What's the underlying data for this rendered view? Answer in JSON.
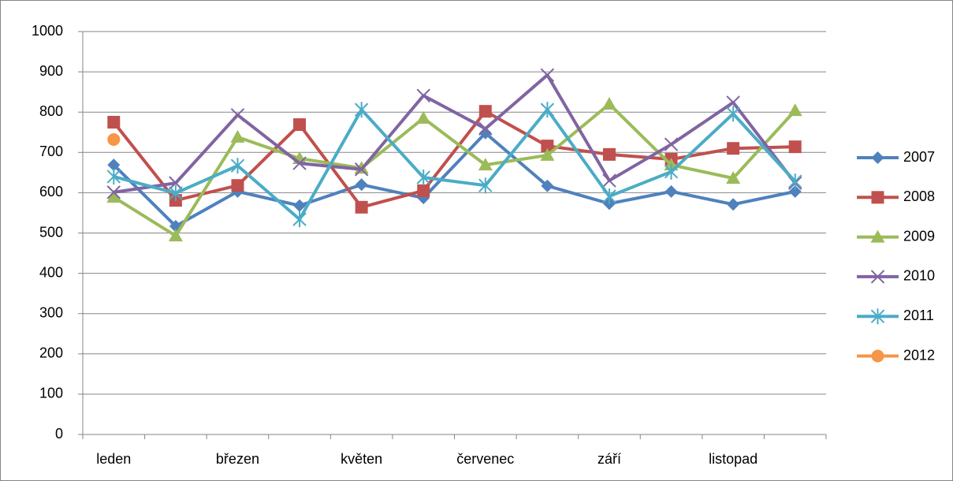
{
  "chart_data": {
    "type": "line",
    "categories": [
      "leden",
      null,
      "březen",
      null,
      "květen",
      null,
      "červenec",
      null,
      "září",
      null,
      "listopad",
      null
    ],
    "series": [
      {
        "name": "2007",
        "color": "#4F81BD",
        "marker": "diamond",
        "values": [
          669,
          517,
          603,
          568,
          620,
          587,
          748,
          617,
          573,
          603,
          571,
          603
        ]
      },
      {
        "name": "2008",
        "color": "#C0504D",
        "marker": "square",
        "values": [
          775,
          581,
          618,
          769,
          564,
          605,
          802,
          716,
          695,
          683,
          710,
          714
        ]
      },
      {
        "name": "2009",
        "color": "#9BBB59",
        "marker": "triangle",
        "values": [
          589,
          493,
          738,
          685,
          661,
          785,
          669,
          693,
          820,
          669,
          636,
          804
        ]
      },
      {
        "name": "2010",
        "color": "#8064A2",
        "marker": "x",
        "values": [
          601,
          624,
          793,
          673,
          658,
          841,
          759,
          892,
          630,
          720,
          824,
          624
        ]
      },
      {
        "name": "2011",
        "color": "#4BACC6",
        "marker": "star",
        "values": [
          640,
          599,
          667,
          534,
          806,
          638,
          618,
          806,
          591,
          652,
          796,
          628
        ]
      },
      {
        "name": "2012",
        "color": "#F79646",
        "marker": "circle",
        "values": [
          732,
          null,
          null,
          null,
          null,
          null,
          null,
          null,
          null,
          null,
          null,
          null
        ]
      }
    ],
    "ylim": [
      0,
      1000
    ],
    "yticks": [
      0,
      100,
      200,
      300,
      400,
      500,
      600,
      700,
      800,
      900,
      1000
    ],
    "grid": true,
    "legend": "right"
  }
}
